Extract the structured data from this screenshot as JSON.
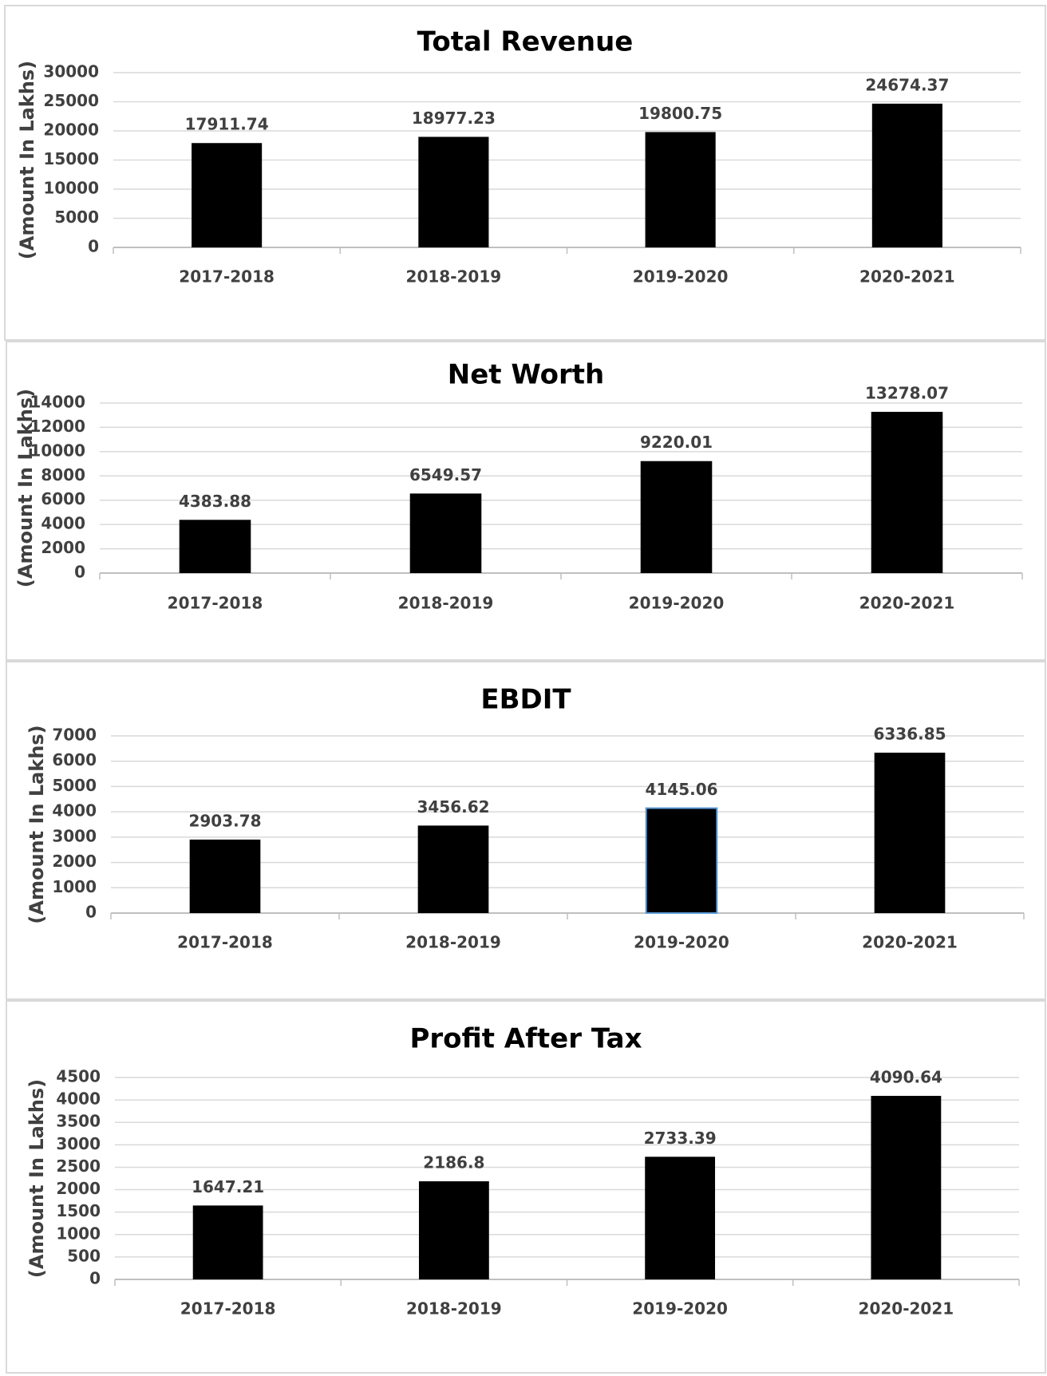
{
  "chart_data": [
    {
      "type": "bar",
      "title": "Total Revenue",
      "xlabel": "",
      "ylabel": "(Amount In Lakhs)",
      "categories": [
        "2017-2018",
        "2018-2019",
        "2019-2020",
        "2020-2021"
      ],
      "values": [
        17911.74,
        18977.23,
        19800.75,
        24674.37
      ],
      "value_labels": [
        "17911.74",
        "18977.23",
        "19800.75",
        "24674.37"
      ],
      "ylim": [
        0,
        30000
      ],
      "yticks": [
        0,
        5000,
        10000,
        15000,
        20000,
        25000,
        30000
      ],
      "grid": true,
      "bar_color": "#000000"
    },
    {
      "type": "bar",
      "title": "Net Worth",
      "xlabel": "",
      "ylabel": "(Amount In Lakhs)",
      "categories": [
        "2017-2018",
        "2018-2019",
        "2019-2020",
        "2020-2021"
      ],
      "values": [
        4383.88,
        6549.57,
        9220.01,
        13278.07
      ],
      "value_labels": [
        "4383.88",
        "6549.57",
        "9220.01",
        "13278.07"
      ],
      "ylim": [
        0,
        14000
      ],
      "yticks": [
        0,
        2000,
        4000,
        6000,
        8000,
        10000,
        12000,
        14000
      ],
      "grid": true,
      "bar_color": "#000000"
    },
    {
      "type": "bar",
      "title": "EBDIT",
      "xlabel": "",
      "ylabel": "(Amount In Lakhs)",
      "categories": [
        "2017-2018",
        "2018-2019",
        "2019-2020",
        "2020-2021"
      ],
      "values": [
        2903.78,
        3456.62,
        4145.06,
        6336.85
      ],
      "value_labels": [
        "2903.78",
        "3456.62",
        "4145.06",
        "6336.85"
      ],
      "ylim": [
        0,
        7000
      ],
      "yticks": [
        0,
        1000,
        2000,
        3000,
        4000,
        5000,
        6000,
        7000
      ],
      "grid": true,
      "bar_color": "#000000",
      "highlight_index": 2,
      "highlight_color": "#5b9bd5"
    },
    {
      "type": "bar",
      "title": "Profit After Tax",
      "xlabel": "",
      "ylabel": "(Amount In Lakhs)",
      "categories": [
        "2017-2018",
        "2018-2019",
        "2019-2020",
        "2020-2021"
      ],
      "values": [
        1647.21,
        2186.8,
        2733.39,
        4090.64
      ],
      "value_labels": [
        "1647.21",
        "2186.8",
        "2733.39",
        "4090.64"
      ],
      "ylim": [
        0,
        4500
      ],
      "yticks": [
        0,
        500,
        1000,
        1500,
        2000,
        2500,
        3000,
        3500,
        4000,
        4500
      ],
      "grid": true,
      "bar_color": "#000000"
    }
  ]
}
